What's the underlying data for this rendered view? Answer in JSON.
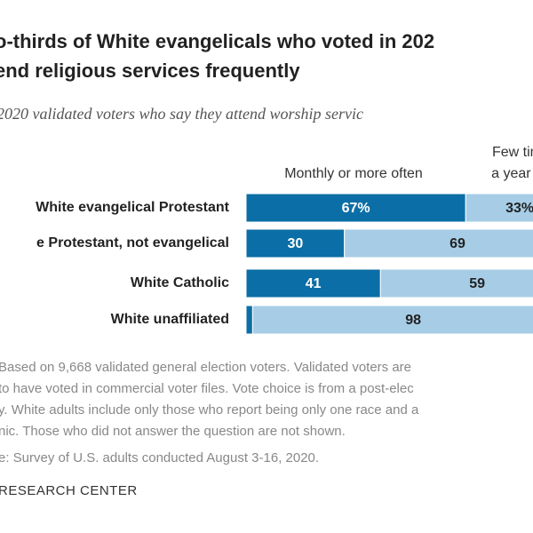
{
  "chart_data": {
    "type": "bar",
    "orientation": "horizontal",
    "stacked": true,
    "title": [
      "o-thirds of White evangelicals who voted in 202",
      "end religious services frequently"
    ],
    "subtitle": "2020 validated voters who say they attend worship servic",
    "categories": [
      "White evangelical Protestant",
      "e Protestant, not evangelical",
      "White Catholic",
      "White unaffiliated"
    ],
    "series": [
      {
        "name": [
          "Monthly or more often"
        ],
        "color": "#0b6ea6",
        "label_color": "#ffffff",
        "values": [
          67,
          30,
          41,
          2
        ],
        "value_labels": [
          "67%",
          "30",
          "41",
          null
        ]
      },
      {
        "name": [
          "Few tim",
          "a year o"
        ],
        "color": "#a7cde6",
        "label_color": "#222222",
        "values": [
          33,
          69,
          59,
          98
        ],
        "value_labels": [
          "33%",
          "69",
          "59",
          "98"
        ]
      }
    ],
    "notes": [
      "Based on 9,668 validated general election voters. Validated voters are",
      "to have voted in commercial voter files. Vote choice is from a post-elec",
      "y. White adults include only those who report being only one race and a",
      "nic. Those who did not answer the question are not shown.",
      "e: Survey of U.S. adults conducted August 3-16, 2020."
    ],
    "source": "RESEARCH CENTER"
  }
}
